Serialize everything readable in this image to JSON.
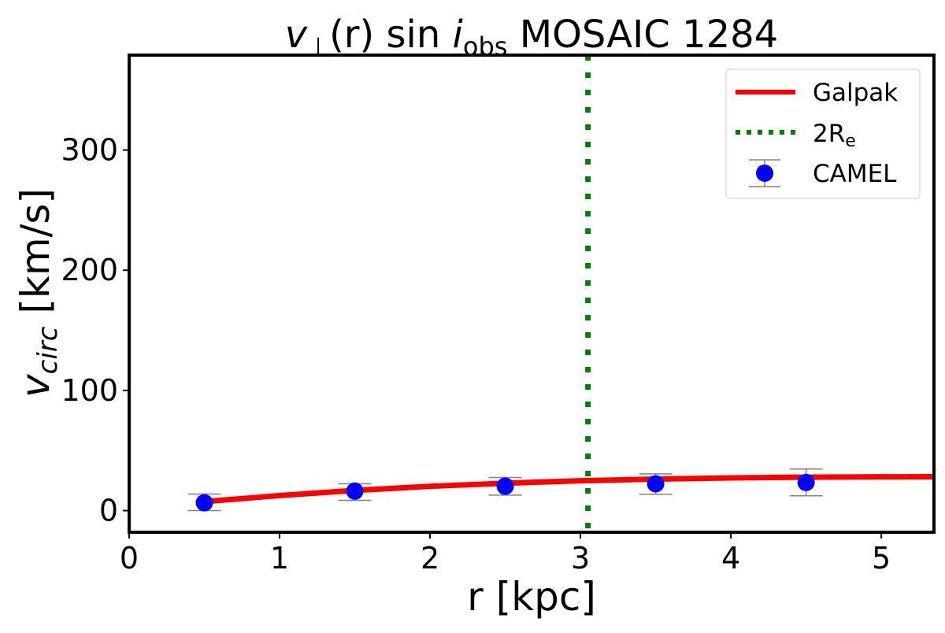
{
  "chart_data": {
    "type": "line",
    "title": {
      "main": "v",
      "sub": "⊥",
      "rest": "(r) sin ",
      "i": "i",
      "isub": "obs",
      "label": " MOSAIC 1284"
    },
    "xlabel": "r [kpc]",
    "ylabel": {
      "main": "v",
      "sub": "circ",
      "unit": " [km/s]"
    },
    "xlim": [
      0,
      5.35
    ],
    "ylim": [
      -18,
      379
    ],
    "xticks": [
      0,
      1,
      2,
      3,
      4,
      5
    ],
    "yticks": [
      0,
      100,
      200,
      300
    ],
    "grid": false,
    "legend_placement": "top-right",
    "series": [
      {
        "name": "Galpak",
        "kind": "line",
        "color": "#ff0000",
        "x": [
          0.5,
          1.0,
          1.5,
          2.0,
          2.5,
          3.0,
          3.5,
          4.0,
          4.5,
          5.0,
          5.35
        ],
        "y": [
          7.5,
          12.5,
          16.8,
          20.2,
          22.8,
          24.8,
          26.2,
          27.2,
          27.8,
          28.1,
          28.2
        ]
      },
      {
        "name": "2R",
        "name_sub": "e",
        "kind": "vline",
        "color": "#008000",
        "x": 3.05
      },
      {
        "name": "CAMEL",
        "kind": "errorbar",
        "color": "#0000ff",
        "errcolor": "#808080",
        "x": [
          0.5,
          1.5,
          2.5,
          3.5,
          4.5
        ],
        "y": [
          6.5,
          16.2,
          20.3,
          22.3,
          23.4
        ],
        "yerr_low": [
          0,
          8.5,
          12.9,
          13.6,
          12.3
        ],
        "yerr_high": [
          13.8,
          22.3,
          27.5,
          30.6,
          34.6
        ]
      }
    ]
  }
}
